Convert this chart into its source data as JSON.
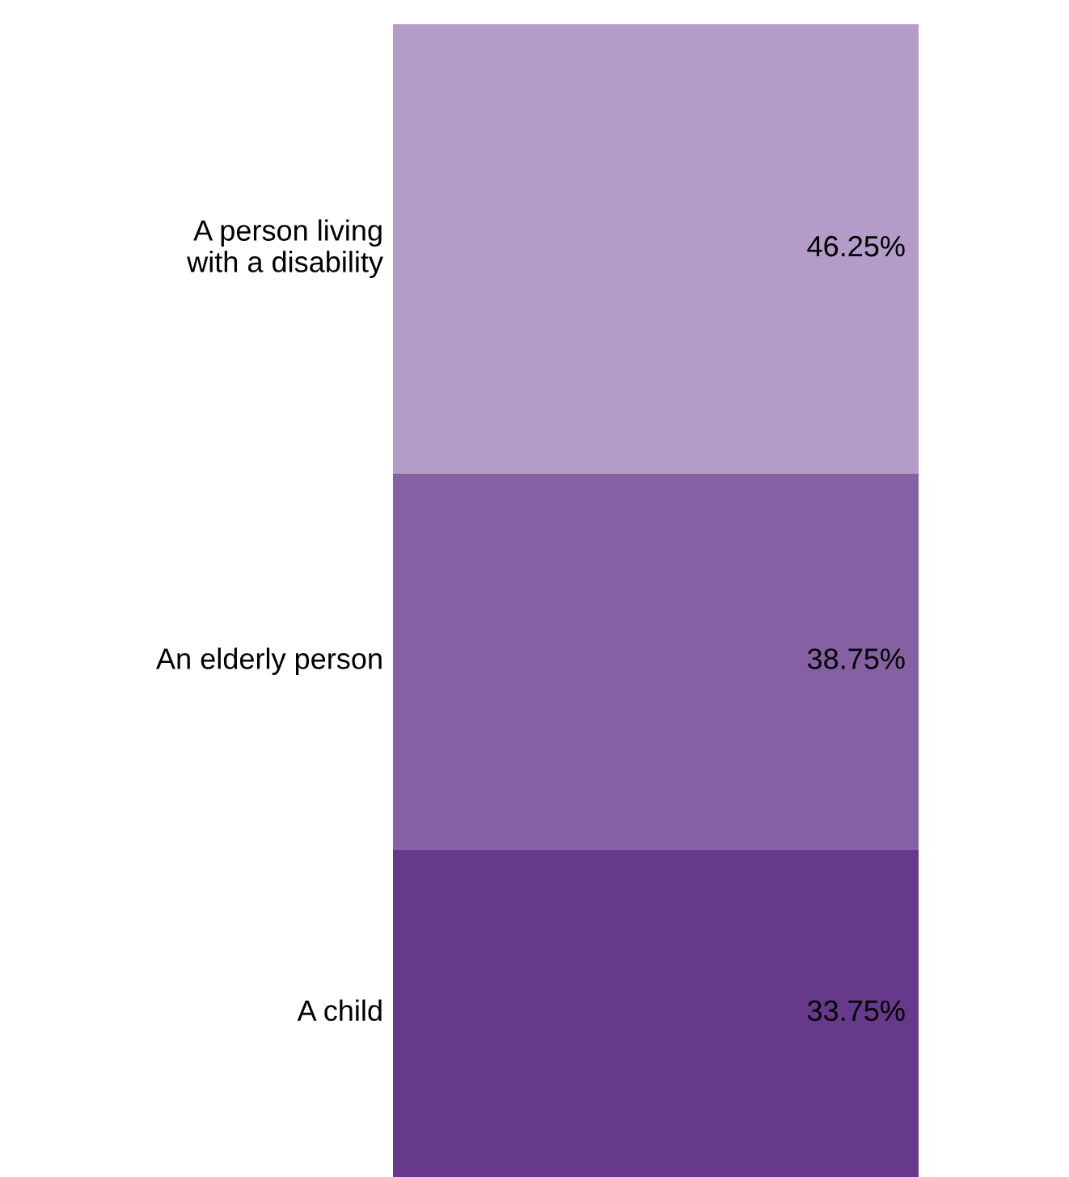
{
  "chart_data": {
    "type": "bar",
    "stacked": true,
    "categories": [
      null
    ],
    "tick_labels": false,
    "legend": false,
    "series": [
      {
        "name": "A child",
        "color": "#66398b",
        "values": [
          33.75
        ],
        "value_labels": [
          "33.75%"
        ]
      },
      {
        "name": "An elderly person",
        "color": "#8561a3",
        "values": [
          38.75
        ],
        "value_labels": [
          "38.75%"
        ]
      },
      {
        "name": "A person living\nwith a disability",
        "color": "#b39dc8",
        "values": [
          46.25
        ],
        "value_labels": [
          "46.25%"
        ]
      }
    ]
  }
}
